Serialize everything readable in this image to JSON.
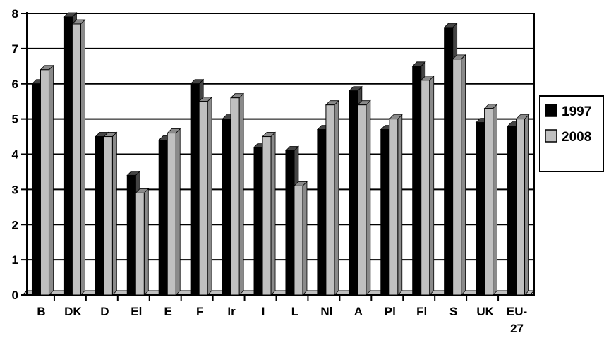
{
  "chart_data": {
    "type": "bar",
    "categories": [
      "B",
      "DK",
      "D",
      "El",
      "E",
      "F",
      "Ir",
      "I",
      "L",
      "Nl",
      "A",
      "Pl",
      "Fl",
      "S",
      "UK",
      "EU-27"
    ],
    "series": [
      {
        "name": "1997",
        "values": [
          6.0,
          7.9,
          4.5,
          3.4,
          4.4,
          6.0,
          5.0,
          4.2,
          4.1,
          4.7,
          5.8,
          4.7,
          6.5,
          7.6,
          4.9,
          4.8
        ]
      },
      {
        "name": "2008",
        "values": [
          6.4,
          7.7,
          4.5,
          2.9,
          4.6,
          5.5,
          5.6,
          4.5,
          3.1,
          5.4,
          5.4,
          5.0,
          6.1,
          6.7,
          5.3,
          5.0
        ]
      }
    ],
    "title": "",
    "xlabel": "",
    "ylabel": "",
    "ylim": [
      0,
      8
    ],
    "yticks": [
      "0",
      "1",
      "2",
      "3",
      "4",
      "5",
      "6",
      "7",
      "8"
    ],
    "grid": true,
    "legend": "right",
    "colors": {
      "1997": "#000000",
      "2008": "#c0c0c0",
      "grid": "#000000",
      "floor": "#c0c0c0"
    }
  }
}
